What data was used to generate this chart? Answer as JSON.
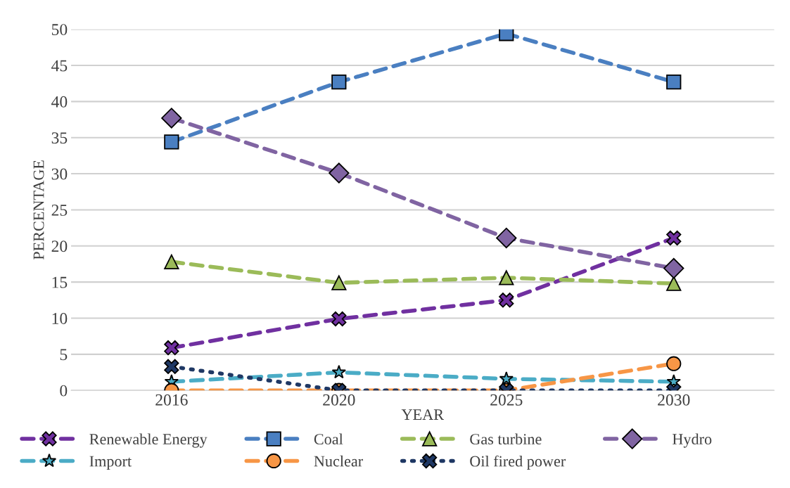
{
  "chart_data": {
    "type": "line",
    "xlabel": "YEAR",
    "ylabel": "PERCENTAGE",
    "categories": [
      "2016",
      "2020",
      "2025",
      "2030"
    ],
    "ylim": [
      0,
      50
    ],
    "yticks": [
      0,
      5,
      10,
      15,
      20,
      25,
      30,
      35,
      40,
      45,
      50
    ],
    "grid": "y",
    "legend": "bottom",
    "series": [
      {
        "name": "Renewable Energy",
        "color": "#7030a0",
        "marker": "cross",
        "line_style": "dashed",
        "values": [
          5.9,
          9.9,
          12.5,
          21.1
        ]
      },
      {
        "name": "Coal",
        "color": "#4a7fc1",
        "marker": "square",
        "line_style": "dashed",
        "values": [
          34.4,
          42.7,
          49.4,
          42.7
        ]
      },
      {
        "name": "Gas turbine",
        "color": "#9bbb59",
        "marker": "triangle",
        "line_style": "dashed",
        "values": [
          17.8,
          14.9,
          15.6,
          14.8
        ]
      },
      {
        "name": "Hydro",
        "color": "#8064a2",
        "marker": "diamond",
        "line_style": "dashed",
        "values": [
          37.7,
          30.1,
          21.1,
          16.9
        ]
      },
      {
        "name": "Import",
        "color": "#4bacc6",
        "marker": "star",
        "line_style": "dashed",
        "values": [
          1.2,
          2.5,
          1.6,
          1.2
        ]
      },
      {
        "name": "Nuclear",
        "color": "#f79646",
        "marker": "circle",
        "line_style": "dashed",
        "values": [
          0,
          0,
          0,
          3.7
        ]
      },
      {
        "name": "Oil fired power",
        "color": "#1f3864",
        "marker": "cross",
        "line_style": "dotted",
        "values": [
          3.3,
          0,
          0,
          0
        ]
      }
    ]
  }
}
